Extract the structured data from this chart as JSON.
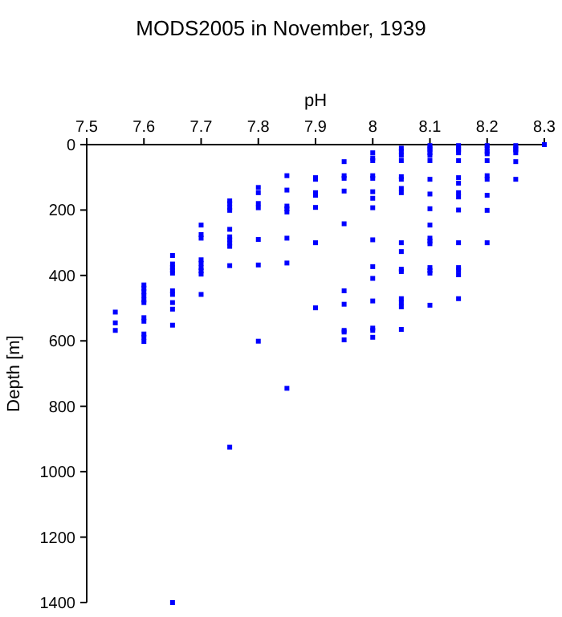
{
  "chart_data": {
    "type": "scatter",
    "title": "MODS2005 in November, 1939",
    "xlabel": "pH",
    "ylabel": "Depth [m]",
    "xlim": [
      7.5,
      8.3
    ],
    "xticks": [
      7.5,
      7.6,
      7.7,
      7.8,
      7.9,
      8,
      8.1,
      8.2,
      8.3
    ],
    "ylim": [
      1400,
      0
    ],
    "yticks": [
      0,
      200,
      400,
      600,
      800,
      1000,
      1200,
      1400
    ],
    "marker": "square",
    "series": [
      {
        "color": "#0000ff",
        "x": [
          7.55,
          7.55,
          7.55,
          7.6,
          7.6,
          7.6,
          7.6,
          7.6,
          7.6,
          7.6,
          7.6,
          7.6,
          7.6,
          7.6,
          7.65,
          7.65,
          7.65,
          7.65,
          7.65,
          7.65,
          7.65,
          7.65,
          7.65,
          7.65,
          7.65,
          7.7,
          7.7,
          7.7,
          7.7,
          7.7,
          7.7,
          7.7,
          7.7,
          7.7,
          7.75,
          7.75,
          7.75,
          7.75,
          7.75,
          7.75,
          7.75,
          7.75,
          7.75,
          7.75,
          7.75,
          7.8,
          7.8,
          7.8,
          7.8,
          7.8,
          7.8,
          7.8,
          7.85,
          7.85,
          7.85,
          7.85,
          7.85,
          7.85,
          7.85,
          7.85,
          7.9,
          7.9,
          7.9,
          7.9,
          7.9,
          7.9,
          7.9,
          7.95,
          7.95,
          7.95,
          7.95,
          7.95,
          7.95,
          7.95,
          7.95,
          7.95,
          7.95,
          8,
          8,
          8,
          8,
          8,
          8,
          8,
          8,
          8,
          8,
          8,
          8,
          8,
          8,
          8,
          8.05,
          8.05,
          8.05,
          8.05,
          8.05,
          8.05,
          8.05,
          8.05,
          8.05,
          8.05,
          8.05,
          8.05,
          8.05,
          8.05,
          8.05,
          8.05,
          8.1,
          8.1,
          8.1,
          8.1,
          8.1,
          8.1,
          8.1,
          8.1,
          8.1,
          8.1,
          8.1,
          8.1,
          8.1,
          8.1,
          8.1,
          8.1,
          8.1,
          8.15,
          8.15,
          8.15,
          8.15,
          8.15,
          8.15,
          8.15,
          8.15,
          8.15,
          8.15,
          8.15,
          8.15,
          8.15,
          8.15,
          8.15,
          8.2,
          8.2,
          8.2,
          8.2,
          8.2,
          8.2,
          8.2,
          8.2,
          8.2,
          8.2,
          8.25,
          8.25,
          8.25,
          8.25,
          8.25,
          8.25,
          8.3
        ],
        "values": [
          512,
          545,
          568,
          429,
          439,
          450,
          462,
          475,
          483,
          529,
          540,
          579,
          589,
          602,
          339,
          365,
          376,
          384,
          393,
          447,
          458,
          483,
          503,
          552,
          1400,
          246,
          275,
          286,
          352,
          363,
          376,
          386,
          396,
          458,
          172,
          180,
          192,
          201,
          259,
          282,
          291,
          301,
          311,
          370,
          925,
          131,
          147,
          180,
          193,
          290,
          368,
          601,
          95,
          139,
          188,
          196,
          206,
          286,
          362,
          745,
          101,
          106,
          147,
          155,
          192,
          300,
          499,
          52,
          95,
          103,
          142,
          242,
          447,
          488,
          568,
          573,
          597,
          25,
          41,
          49,
          95,
          103,
          144,
          164,
          193,
          291,
          373,
          409,
          478,
          561,
          568,
          589,
          11,
          21,
          33,
          49,
          98,
          106,
          134,
          147,
          300,
          327,
          381,
          388,
          471,
          483,
          496,
          565,
          3,
          11,
          16,
          25,
          33,
          49,
          106,
          151,
          196,
          246,
          286,
          295,
          303,
          376,
          385,
          393,
          491,
          3,
          11,
          16,
          25,
          49,
          101,
          118,
          147,
          160,
          200,
          300,
          376,
          384,
          398,
          471,
          3,
          11,
          21,
          28,
          49,
          95,
          106,
          155,
          201,
          300,
          3,
          11,
          16,
          25,
          52,
          106,
          0
        ]
      }
    ]
  }
}
